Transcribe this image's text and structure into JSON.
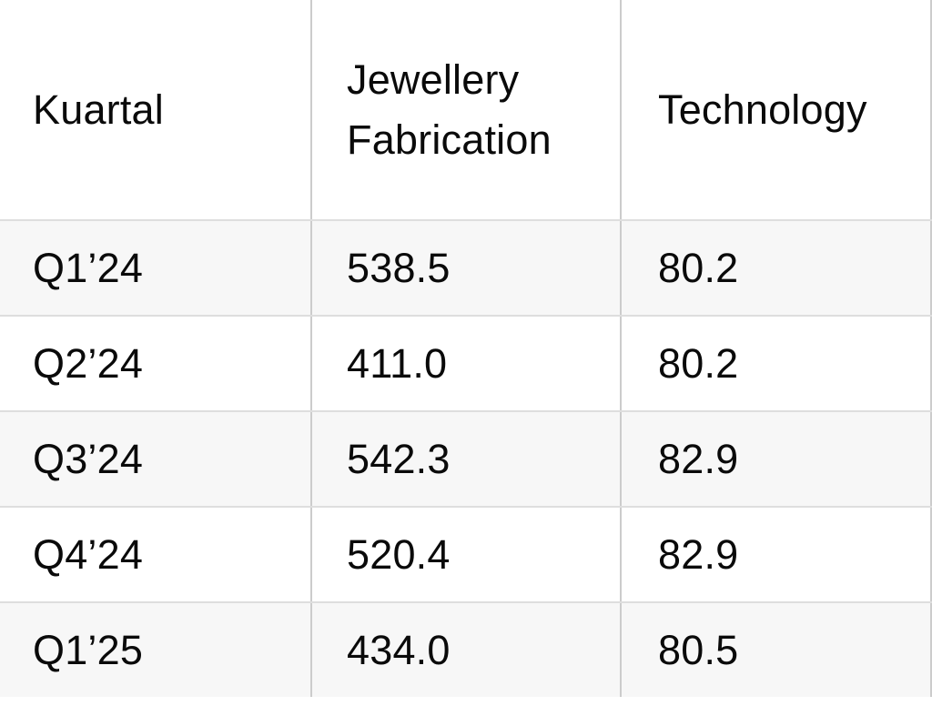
{
  "colors": {
    "background": "#ffffff",
    "row_stripe": "#f7f7f7",
    "row_border": "#dedede",
    "column_divider": "#cccccc",
    "text": "#0a0a0a"
  },
  "table": {
    "columns": [
      {
        "id": "kuartal",
        "label": "Kuartal"
      },
      {
        "id": "jewellery_fabrication",
        "label": "Jewellery Fabrication"
      },
      {
        "id": "technology",
        "label": "Technology"
      }
    ],
    "rows": [
      {
        "kuartal": "Q1’24",
        "jewellery_fabrication": "538.5",
        "technology": "80.2"
      },
      {
        "kuartal": "Q2’24",
        "jewellery_fabrication": "411.0",
        "technology": "80.2"
      },
      {
        "kuartal": "Q3’24",
        "jewellery_fabrication": "542.3",
        "technology": "82.9"
      },
      {
        "kuartal": "Q4’24",
        "jewellery_fabrication": "520.4",
        "technology": "82.9"
      },
      {
        "kuartal": "Q1’25",
        "jewellery_fabrication": "434.0",
        "technology": "80.5"
      }
    ]
  },
  "chart_data": {
    "type": "table",
    "title": "",
    "columns": [
      "Kuartal",
      "Jewellery Fabrication",
      "Technology"
    ],
    "rows": [
      [
        "Q1’24",
        538.5,
        80.2
      ],
      [
        "Q2’24",
        411.0,
        80.2
      ],
      [
        "Q3’24",
        542.3,
        82.9
      ],
      [
        "Q4’24",
        520.4,
        82.9
      ],
      [
        "Q1’25",
        434.0,
        80.5
      ]
    ]
  }
}
